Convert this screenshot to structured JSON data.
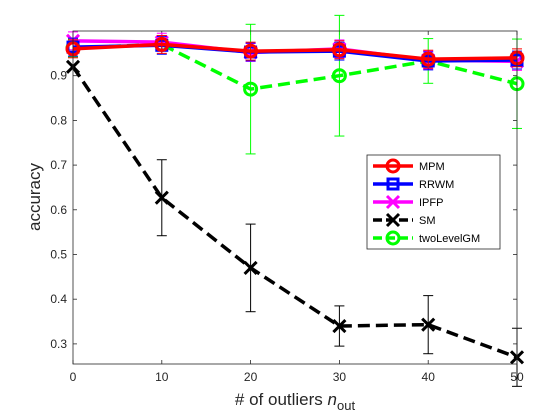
{
  "chart_data": {
    "type": "line",
    "title": "",
    "xlabel_main": "# of outliers ",
    "xlabel_var": "n",
    "xlabel_sub": "out",
    "ylabel": "accuracy",
    "x": [
      0,
      10,
      20,
      30,
      40,
      50
    ],
    "xlim": [
      0,
      50
    ],
    "ylim": [
      0.255,
      1.0
    ],
    "xticks": [
      "0",
      "10",
      "20",
      "30",
      "40",
      "50"
    ],
    "yticks": [
      "0.3",
      "0.4",
      "0.5",
      "0.6",
      "0.7",
      "0.8",
      "0.9"
    ],
    "ytick_values": [
      0.3,
      0.4,
      0.5,
      0.6,
      0.7,
      0.8,
      0.9
    ],
    "grid": false,
    "legend_position": "right-middle",
    "series": [
      {
        "name": "MPM",
        "color": "#ff0000",
        "marker": "circle",
        "dash": "solid",
        "values": [
          0.96,
          0.97,
          0.955,
          0.958,
          0.937,
          0.94
        ],
        "err": [
          0.02,
          0.02,
          0.02,
          0.02,
          0.02,
          0.02
        ]
      },
      {
        "name": "RRWM",
        "color": "#0000ff",
        "marker": "square",
        "dash": "solid",
        "values": [
          0.964,
          0.968,
          0.953,
          0.955,
          0.933,
          0.935
        ],
        "err": [
          0.02,
          0.02,
          0.02,
          0.02,
          0.02,
          0.02
        ]
      },
      {
        "name": "IPFP",
        "color": "#ff00ff",
        "marker": "x",
        "dash": "solid",
        "values": [
          0.978,
          0.975,
          0.952,
          0.96,
          0.935,
          0.932
        ],
        "err": [
          0.02,
          0.02,
          0.02,
          0.02,
          0.02,
          0.02
        ]
      },
      {
        "name": "SM",
        "color": "#000000",
        "marker": "x",
        "dash": "dashed",
        "values": [
          0.92,
          0.627,
          0.47,
          0.34,
          0.343,
          0.27
        ],
        "err": [
          0.0,
          0.085,
          0.098,
          0.045,
          0.065,
          0.065
        ]
      },
      {
        "name": "twoLevelGM",
        "color": "#00ff00",
        "marker": "circle",
        "dash": "dashed",
        "values": [
          0.962,
          0.97,
          0.87,
          0.9,
          0.933,
          0.882
        ],
        "err": [
          0.02,
          0.01,
          0.145,
          0.135,
          0.05,
          0.1
        ]
      }
    ]
  }
}
